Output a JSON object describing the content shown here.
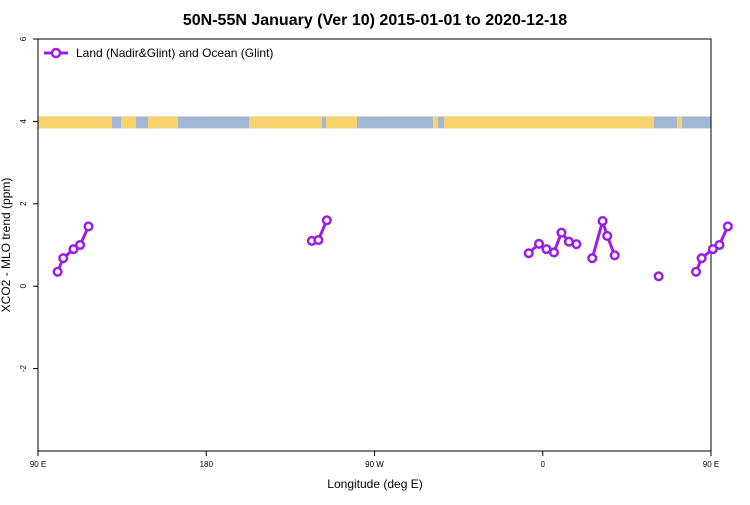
{
  "chart_data": {
    "type": "line",
    "title": "50N-55N January (Ver 10)   2015-01-01 to 2020-12-18",
    "xlabel": "Longitude (deg E)",
    "ylabel": "XCO2 - MLO trend (ppm)",
    "xlim": [
      90,
      450
    ],
    "ylim": [
      -4,
      6
    ],
    "x_ticks": [
      {
        "value": 90,
        "label": "90 E"
      },
      {
        "value": 180,
        "label": "180"
      },
      {
        "value": 270,
        "label": "90 W"
      },
      {
        "value": 360,
        "label": "0"
      },
      {
        "value": 450,
        "label": "90 E"
      },
      {
        "value": 540,
        "label": "180"
      }
    ],
    "y_ticks": [
      {
        "value": -2,
        "label": "-2"
      },
      {
        "value": 0,
        "label": "0"
      },
      {
        "value": 2,
        "label": "2"
      },
      {
        "value": 4,
        "label": "4"
      },
      {
        "value": 6,
        "label": "6"
      }
    ],
    "legend_position": "top-left",
    "colors": {
      "series": "#9b1ee6",
      "land": "#f7d36e",
      "ocean": "#a3b6d4"
    },
    "series": [
      {
        "name": "Land (Nadir&Glint) and Ocean (Glint)",
        "segments": [
          [
            [
              100.5,
              0.35
            ],
            [
              103.5,
              0.68
            ],
            [
              109,
              0.9
            ],
            [
              112.5,
              1.0
            ],
            [
              117,
              1.45
            ]
          ],
          [
            [
              236.5,
              1.1
            ],
            [
              240,
              1.12
            ],
            [
              244.5,
              1.6
            ]
          ],
          [
            [
              352.5,
              0.8
            ],
            [
              358,
              1.03
            ],
            [
              362,
              0.9
            ],
            [
              366,
              0.82
            ],
            [
              370,
              1.3
            ],
            [
              374,
              1.08
            ],
            [
              378,
              1.02
            ]
          ],
          [
            [
              386.5,
              0.68
            ],
            [
              392,
              1.58
            ],
            [
              394.5,
              1.22
            ],
            [
              398.5,
              0.75
            ]
          ],
          [
            [
              422,
              0.24
            ]
          ],
          [
            [
              442,
              0.35
            ],
            [
              445,
              0.68
            ],
            [
              451,
              0.9
            ],
            [
              454.5,
              1.0
            ],
            [
              459,
              1.45
            ]
          ]
        ]
      }
    ]
  }
}
